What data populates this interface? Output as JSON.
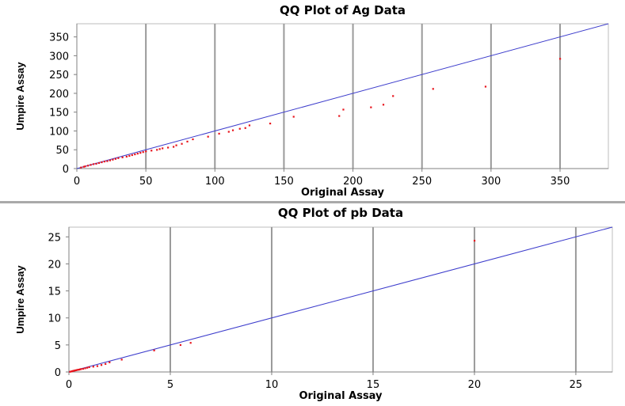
{
  "chart_data": [
    {
      "type": "scatter",
      "title": "QQ Plot of Ag Data",
      "xlabel": "Original Assay",
      "ylabel": "Umpire Assay",
      "xlim": [
        0,
        385
      ],
      "ylim": [
        0,
        385
      ],
      "xticks": [
        0,
        50,
        100,
        150,
        200,
        250,
        300,
        350
      ],
      "yticks": [
        0,
        50,
        100,
        150,
        200,
        250,
        300,
        350
      ],
      "grid": "vertical",
      "point_color": "#e8141c",
      "line_color": "#3d3dcc",
      "reference_line": [
        [
          0,
          0
        ],
        [
          385,
          385
        ]
      ],
      "points": [
        [
          3,
          3
        ],
        [
          5,
          5
        ],
        [
          6,
          6
        ],
        [
          8,
          8
        ],
        [
          10,
          10
        ],
        [
          12,
          12
        ],
        [
          14,
          13
        ],
        [
          16,
          15
        ],
        [
          18,
          17
        ],
        [
          20,
          19
        ],
        [
          22,
          20
        ],
        [
          24,
          22
        ],
        [
          26,
          24
        ],
        [
          28,
          26
        ],
        [
          30,
          28
        ],
        [
          33,
          30
        ],
        [
          36,
          32
        ],
        [
          38,
          34
        ],
        [
          40,
          36
        ],
        [
          42,
          38
        ],
        [
          44,
          40
        ],
        [
          46,
          42
        ],
        [
          48,
          44
        ],
        [
          50,
          46
        ],
        [
          54,
          48
        ],
        [
          58,
          50
        ],
        [
          60,
          52
        ],
        [
          62,
          54
        ],
        [
          66,
          56
        ],
        [
          70,
          58
        ],
        [
          72,
          62
        ],
        [
          76,
          66
        ],
        [
          80,
          72
        ],
        [
          84,
          78
        ],
        [
          95,
          85
        ],
        [
          103,
          93
        ],
        [
          110,
          98
        ],
        [
          113,
          102
        ],
        [
          118,
          106
        ],
        [
          122,
          108
        ],
        [
          125,
          115
        ],
        [
          140,
          120
        ],
        [
          157,
          138
        ],
        [
          190,
          140
        ],
        [
          193,
          157
        ],
        [
          213,
          163
        ],
        [
          222,
          170
        ],
        [
          229,
          193
        ],
        [
          258,
          212
        ],
        [
          296,
          218
        ],
        [
          350,
          292
        ]
      ]
    },
    {
      "type": "scatter",
      "title": "QQ Plot of pb Data",
      "xlabel": "Original Assay",
      "ylabel": "Umpire Assay",
      "xlim": [
        0,
        26.8
      ],
      "ylim": [
        0,
        26.8
      ],
      "xticks": [
        0,
        5,
        10,
        15,
        20,
        25
      ],
      "yticks": [
        0,
        5,
        10,
        15,
        20,
        25
      ],
      "grid": "vertical",
      "point_color": "#e8141c",
      "line_color": "#3d3dcc",
      "reference_line": [
        [
          0,
          0
        ],
        [
          26.8,
          26.8
        ]
      ],
      "points": [
        [
          0.05,
          0.05
        ],
        [
          0.1,
          0.1
        ],
        [
          0.15,
          0.15
        ],
        [
          0.2,
          0.2
        ],
        [
          0.25,
          0.25
        ],
        [
          0.3,
          0.3
        ],
        [
          0.35,
          0.33
        ],
        [
          0.4,
          0.38
        ],
        [
          0.45,
          0.42
        ],
        [
          0.5,
          0.45
        ],
        [
          0.55,
          0.5
        ],
        [
          0.6,
          0.55
        ],
        [
          0.7,
          0.6
        ],
        [
          0.8,
          0.7
        ],
        [
          0.9,
          0.8
        ],
        [
          1.0,
          0.9
        ],
        [
          1.2,
          1.0
        ],
        [
          1.4,
          1.1
        ],
        [
          1.6,
          1.3
        ],
        [
          1.8,
          1.5
        ],
        [
          2.0,
          1.8
        ],
        [
          2.6,
          2.3
        ],
        [
          4.2,
          4.0
        ],
        [
          5.5,
          5.0
        ],
        [
          6.0,
          5.4
        ],
        [
          20.0,
          24.3
        ]
      ]
    }
  ]
}
